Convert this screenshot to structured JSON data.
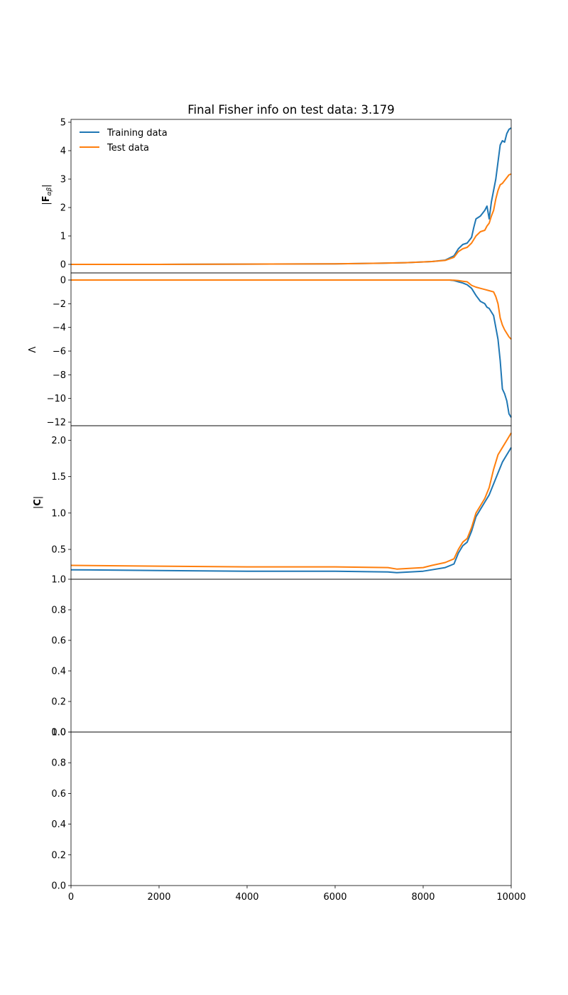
{
  "chart_data": {
    "type": "line",
    "title": "Final Fisher info on test data: 3.179",
    "legend": {
      "placement": "top-left",
      "entries": [
        {
          "label": "Training data",
          "color": "#1f77b4"
        },
        {
          "label": "Test data",
          "color": "#ff7f0e"
        }
      ]
    },
    "xlim": [
      0,
      10000
    ],
    "xticks": [
      "0",
      "2000",
      "4000",
      "6000",
      "8000",
      "10000"
    ],
    "panels": [
      {
        "ylabel": "|F_αβ|",
        "ylim": [
          -0.3,
          5.1
        ],
        "yticks": [
          "0",
          "1",
          "2",
          "3",
          "4",
          "5"
        ],
        "series": [
          {
            "name": "Training data",
            "color": "#1f77b4",
            "x": [
              0,
              2000,
              4000,
              6000,
              7000,
              7600,
              8200,
              8500,
              8700,
              8800,
              8900,
              9000,
              9100,
              9150,
              9200,
              9300,
              9350,
              9400,
              9450,
              9500,
              9550,
              9600,
              9650,
              9700,
              9750,
              9800,
              9850,
              9900,
              9950,
              10000
            ],
            "y": [
              0,
              0,
              0.01,
              0.02,
              0.04,
              0.06,
              0.1,
              0.15,
              0.3,
              0.55,
              0.7,
              0.75,
              0.95,
              1.3,
              1.6,
              1.7,
              1.8,
              1.9,
              2.05,
              1.6,
              2.2,
              2.6,
              3.0,
              3.6,
              4.2,
              4.35,
              4.3,
              4.6,
              4.75,
              4.8
            ]
          },
          {
            "name": "Test data",
            "color": "#ff7f0e",
            "x": [
              0,
              2000,
              4000,
              6000,
              7000,
              7600,
              8200,
              8500,
              8700,
              8800,
              8900,
              9000,
              9100,
              9200,
              9300,
              9400,
              9450,
              9500,
              9550,
              9600,
              9650,
              9700,
              9750,
              9800,
              9850,
              9900,
              9950,
              10000
            ],
            "y": [
              0,
              0,
              0.01,
              0.02,
              0.04,
              0.06,
              0.1,
              0.14,
              0.25,
              0.45,
              0.55,
              0.6,
              0.75,
              1.0,
              1.15,
              1.2,
              1.35,
              1.45,
              1.7,
              1.9,
              2.3,
              2.6,
              2.8,
              2.85,
              2.95,
              3.05,
              3.15,
              3.18
            ]
          }
        ]
      },
      {
        "ylabel": "Λ",
        "ylim": [
          -12.3,
          0.6
        ],
        "yticks": [
          "0",
          "−2",
          "−4",
          "−6",
          "−8",
          "−10",
          "−12"
        ],
        "series": [
          {
            "name": "Training data",
            "color": "#1f77b4",
            "x": [
              0,
              2000,
              4000,
              6000,
              8000,
              8600,
              8700,
              8800,
              8900,
              9000,
              9100,
              9150,
              9200,
              9300,
              9400,
              9450,
              9500,
              9600,
              9650,
              9700,
              9750,
              9800,
              9850,
              9900,
              9950,
              10000
            ],
            "y": [
              0,
              0,
              0,
              0,
              0,
              0,
              -0.05,
              -0.15,
              -0.25,
              -0.4,
              -0.7,
              -1.0,
              -1.3,
              -1.8,
              -2.0,
              -2.3,
              -2.4,
              -3.0,
              -4.0,
              -5.0,
              -6.8,
              -9.2,
              -9.6,
              -10.2,
              -11.3,
              -11.6
            ]
          },
          {
            "name": "Test data",
            "color": "#ff7f0e",
            "x": [
              0,
              2000,
              4000,
              6000,
              8000,
              8600,
              8700,
              8800,
              8900,
              9000,
              9100,
              9200,
              9300,
              9400,
              9500,
              9600,
              9650,
              9700,
              9750,
              9800,
              9850,
              9900,
              9950,
              10000
            ],
            "y": [
              0,
              0,
              0,
              0,
              0,
              0,
              -0.02,
              -0.05,
              -0.1,
              -0.15,
              -0.45,
              -0.6,
              -0.7,
              -0.8,
              -0.9,
              -1.0,
              -1.4,
              -2.0,
              -3.2,
              -3.8,
              -4.2,
              -4.5,
              -4.8,
              -5.0
            ]
          }
        ]
      },
      {
        "ylabel": "|C|",
        "ylim": [
          0.09,
          2.2
        ],
        "yticks": [
          "0.5",
          "1.0",
          "1.5",
          "2.0"
        ],
        "series": [
          {
            "name": "Training data",
            "color": "#1f77b4",
            "x": [
              0,
              2000,
              4000,
              6000,
              7200,
              7400,
              8000,
              8200,
              8500,
              8700,
              8800,
              8900,
              9000,
              9100,
              9200,
              9300,
              9400,
              9500,
              9600,
              9700,
              9800,
              9900,
              10000
            ],
            "y": [
              0.22,
              0.21,
              0.2,
              0.2,
              0.19,
              0.18,
              0.2,
              0.22,
              0.25,
              0.3,
              0.45,
              0.55,
              0.6,
              0.75,
              0.95,
              1.05,
              1.15,
              1.25,
              1.4,
              1.55,
              1.7,
              1.8,
              1.9
            ]
          },
          {
            "name": "Test data",
            "color": "#ff7f0e",
            "x": [
              0,
              2000,
              4000,
              6000,
              7200,
              7400,
              8000,
              8200,
              8500,
              8700,
              8800,
              8900,
              9000,
              9100,
              9200,
              9300,
              9400,
              9500,
              9600,
              9700,
              9800,
              9900,
              10000
            ],
            "y": [
              0.28,
              0.27,
              0.26,
              0.26,
              0.25,
              0.23,
              0.25,
              0.28,
              0.32,
              0.37,
              0.5,
              0.6,
              0.65,
              0.8,
              1.0,
              1.1,
              1.2,
              1.35,
              1.6,
              1.8,
              1.9,
              2.0,
              2.1
            ]
          }
        ]
      },
      {
        "ylabel": "",
        "ylim": [
          0,
          1
        ],
        "yticks": [
          "0.0",
          "0.2",
          "0.4",
          "0.6",
          "0.8",
          "1.0"
        ],
        "series": []
      },
      {
        "ylabel": "",
        "ylim": [
          0,
          1
        ],
        "yticks": [
          "0.0",
          "0.2",
          "0.4",
          "0.6",
          "0.8",
          "1.0"
        ],
        "series": []
      }
    ]
  }
}
